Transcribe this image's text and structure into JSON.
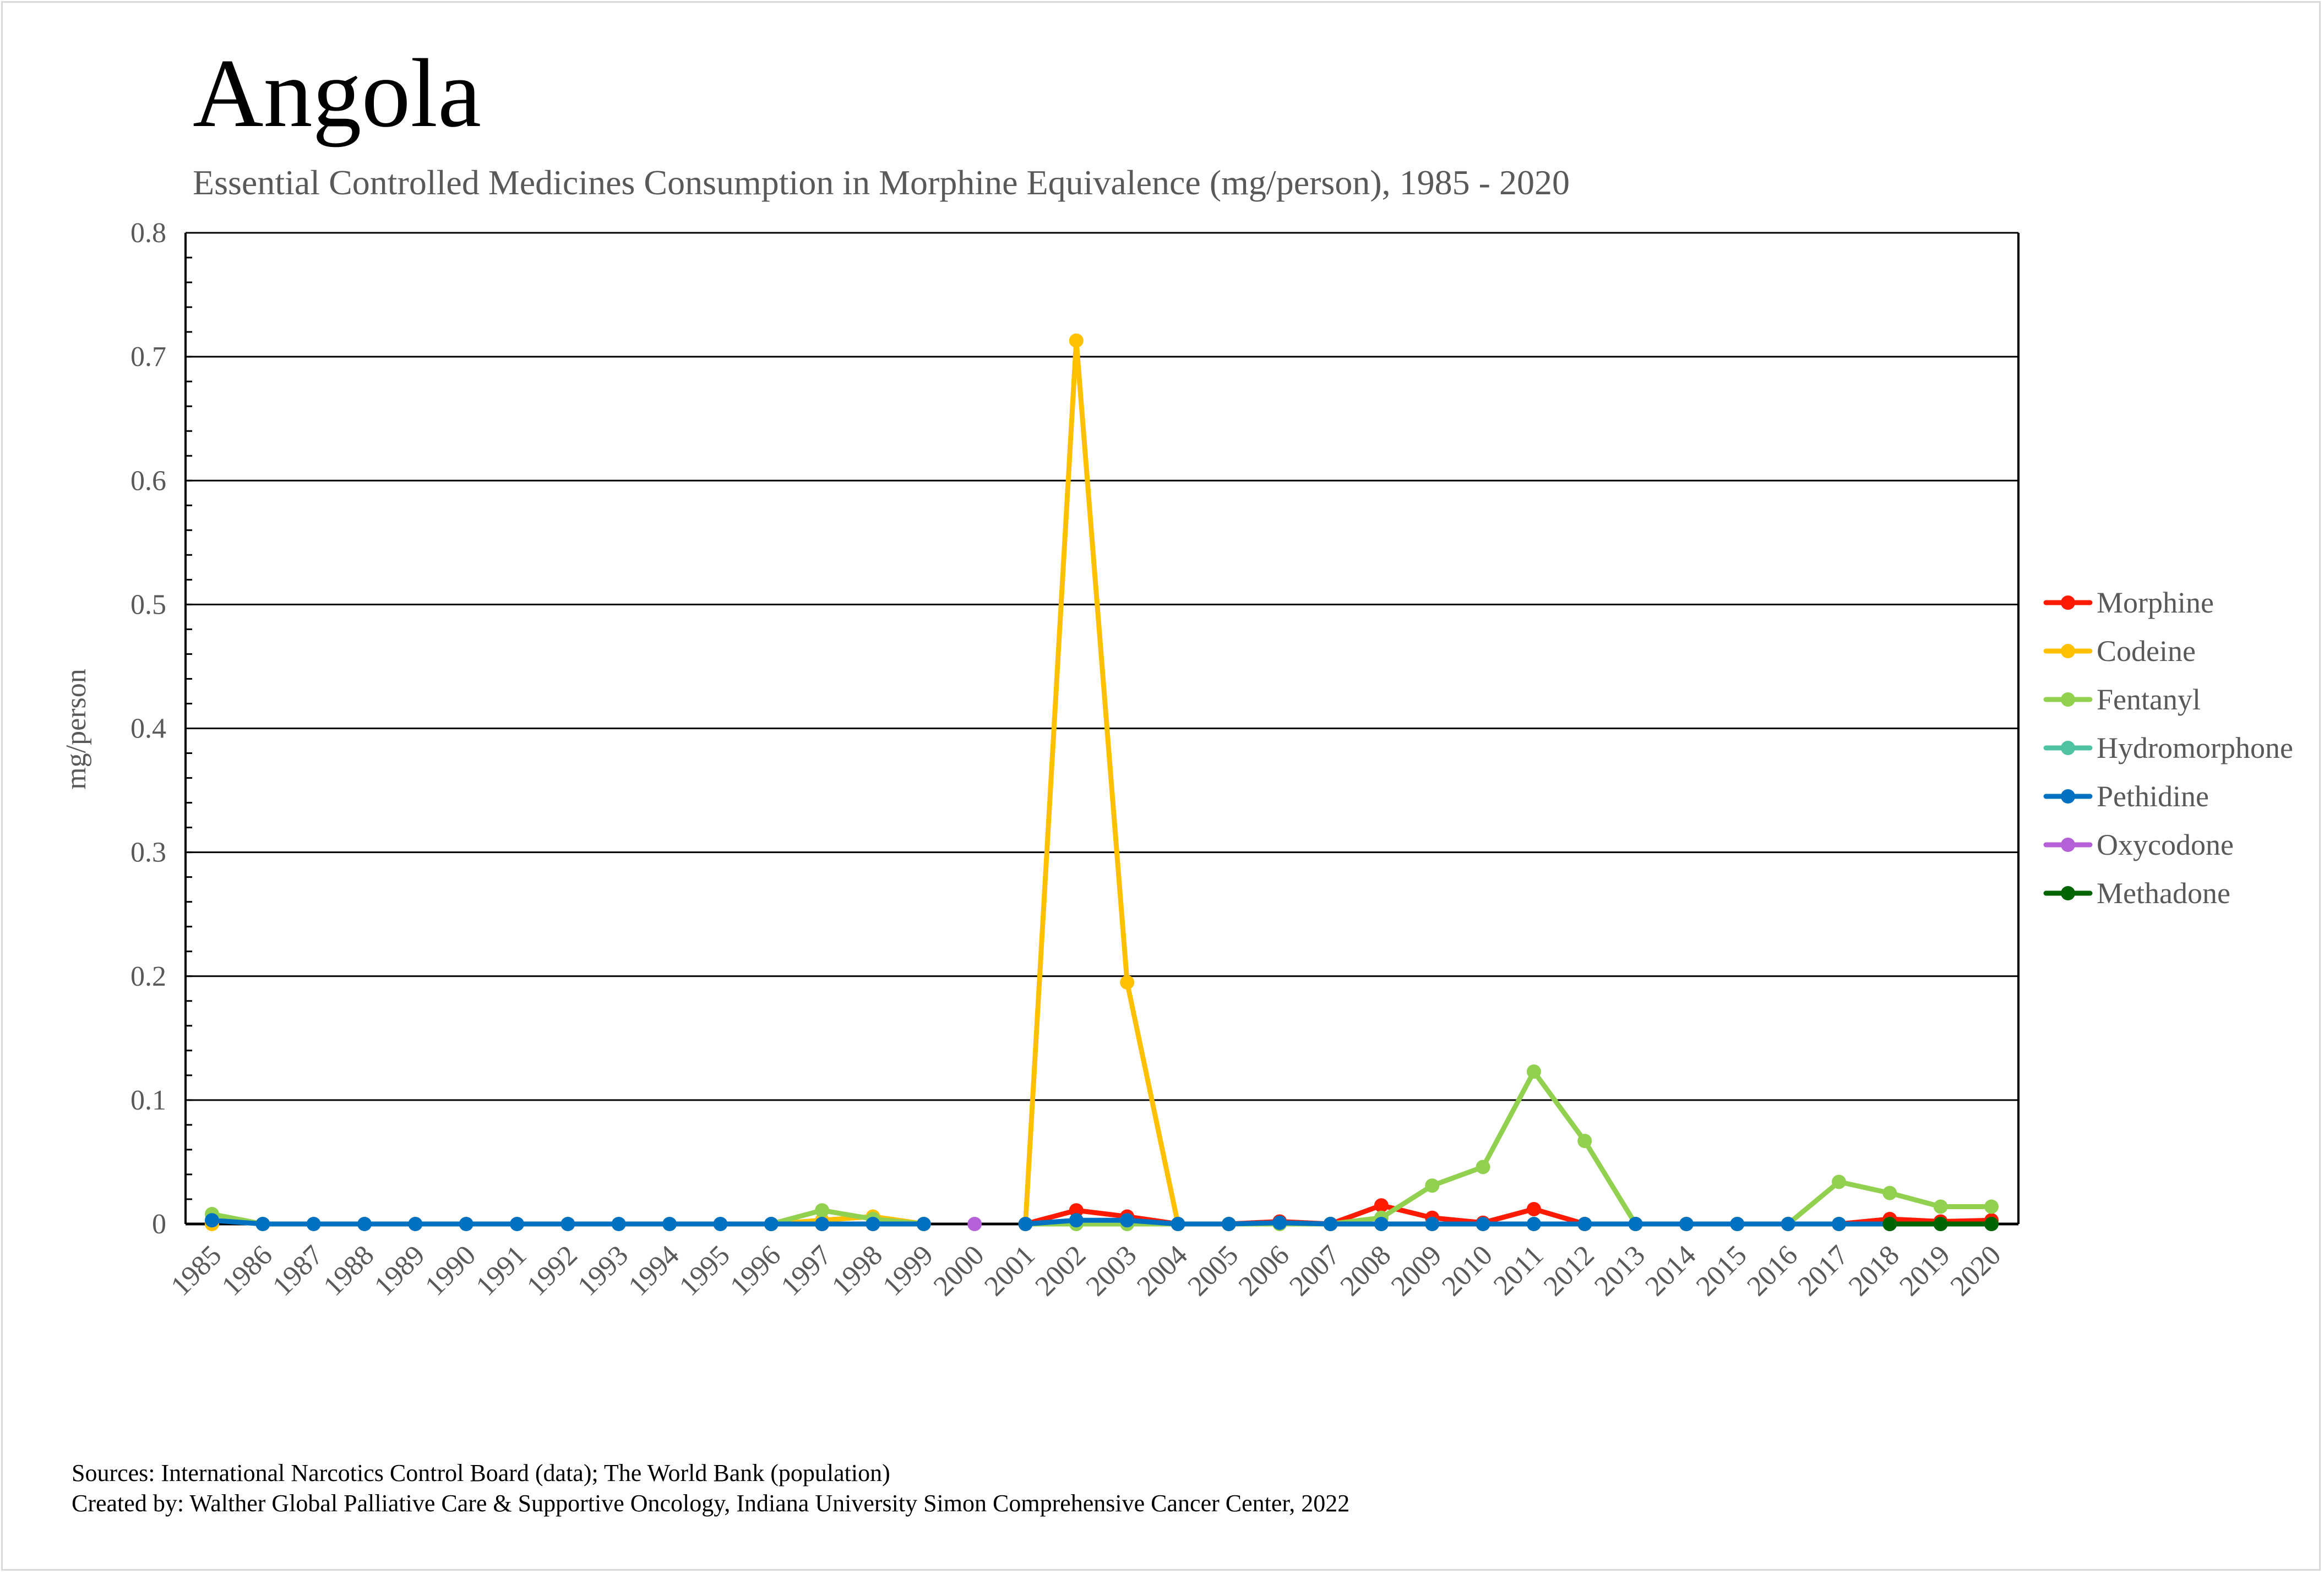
{
  "chart_data": {
    "type": "line",
    "title": "Angola",
    "subtitle": "Essential Controlled Medicines Consumption in Morphine Equivalence (mg/person), 1985 - 2020",
    "xlabel": "",
    "ylabel": "mg/person",
    "ylim": [
      0,
      0.8
    ],
    "yticks": [
      0,
      0.1,
      0.2,
      0.3,
      0.4,
      0.5,
      0.6,
      0.7,
      0.8
    ],
    "ytick_labels": [
      "0",
      "0.1",
      "0.2",
      "0.3",
      "0.4",
      "0.5",
      "0.6",
      "0.7",
      "0.8"
    ],
    "grid": true,
    "legend_position": "right",
    "x": [
      "1985",
      "1986",
      "1987",
      "1988",
      "1989",
      "1990",
      "1991",
      "1992",
      "1993",
      "1994",
      "1995",
      "1996",
      "1997",
      "1998",
      "1999",
      "2000",
      "2001",
      "2002",
      "2003",
      "2004",
      "2005",
      "2006",
      "2007",
      "2008",
      "2009",
      "2010",
      "2011",
      "2012",
      "2013",
      "2014",
      "2015",
      "2016",
      "2017",
      "2018",
      "2019",
      "2020"
    ],
    "series": [
      {
        "name": "Morphine",
        "color": "#ff1a00",
        "values": [
          null,
          null,
          null,
          null,
          null,
          null,
          null,
          null,
          null,
          null,
          null,
          null,
          0,
          0,
          null,
          null,
          0,
          0.011,
          0.006,
          0,
          0,
          0.002,
          0,
          0.015,
          0.005,
          0.001,
          0.012,
          0,
          0,
          0,
          0,
          0,
          0,
          0.004,
          0.002,
          0.003
        ]
      },
      {
        "name": "Codeine",
        "color": "#ffc000",
        "values": [
          0,
          null,
          null,
          null,
          null,
          null,
          null,
          null,
          null,
          null,
          null,
          0,
          0.003,
          0.006,
          0,
          null,
          0,
          0.713,
          0.195,
          0,
          0,
          0,
          0,
          0,
          0,
          0,
          0,
          0,
          0,
          0,
          0,
          0,
          0,
          0,
          0,
          0
        ]
      },
      {
        "name": "Fentanyl",
        "color": "#92d050",
        "values": [
          0.008,
          0,
          null,
          null,
          null,
          null,
          null,
          null,
          null,
          null,
          null,
          0,
          0.011,
          0.004,
          0,
          null,
          0,
          0,
          0,
          0,
          0,
          0,
          0,
          0.005,
          0.031,
          0.046,
          0.123,
          0.067,
          0,
          0,
          0,
          0,
          0.034,
          0.025,
          0.014,
          0.014
        ]
      },
      {
        "name": "Hydromorphone",
        "color": "#4fc3a1",
        "values": [
          null,
          null,
          null,
          null,
          null,
          null,
          null,
          null,
          null,
          null,
          null,
          null,
          null,
          null,
          null,
          null,
          null,
          null,
          null,
          null,
          null,
          null,
          null,
          null,
          null,
          null,
          null,
          null,
          null,
          null,
          null,
          null,
          null,
          null,
          null,
          null
        ]
      },
      {
        "name": "Pethidine",
        "color": "#0070c0",
        "values": [
          0.003,
          0,
          0,
          0,
          0,
          0,
          0,
          0,
          0,
          0,
          0,
          0,
          0,
          0,
          0,
          null,
          0,
          0.003,
          0.003,
          0,
          0,
          0.001,
          0,
          0,
          0,
          0,
          0,
          0,
          0,
          0,
          0,
          0,
          0,
          0,
          0,
          0
        ]
      },
      {
        "name": "Oxycodone",
        "color": "#b460d6",
        "values": [
          null,
          null,
          null,
          null,
          null,
          null,
          null,
          null,
          null,
          null,
          null,
          null,
          null,
          null,
          null,
          0,
          null,
          null,
          null,
          null,
          null,
          null,
          null,
          null,
          null,
          null,
          null,
          null,
          null,
          null,
          null,
          null,
          null,
          null,
          null,
          null
        ]
      },
      {
        "name": "Methadone",
        "color": "#006400",
        "values": [
          null,
          null,
          null,
          null,
          null,
          null,
          null,
          null,
          null,
          null,
          null,
          null,
          null,
          null,
          null,
          null,
          null,
          null,
          null,
          null,
          null,
          null,
          null,
          null,
          null,
          null,
          null,
          null,
          null,
          null,
          null,
          null,
          null,
          0,
          0,
          0
        ]
      }
    ]
  },
  "footer": {
    "sources": "Sources: International Narcotics Control Board (data); The World Bank (population)",
    "created_by": "Created by: Walther Global Palliative Care & Supportive Oncology, Indiana University Simon Comprehensive Cancer Center, 2022"
  }
}
